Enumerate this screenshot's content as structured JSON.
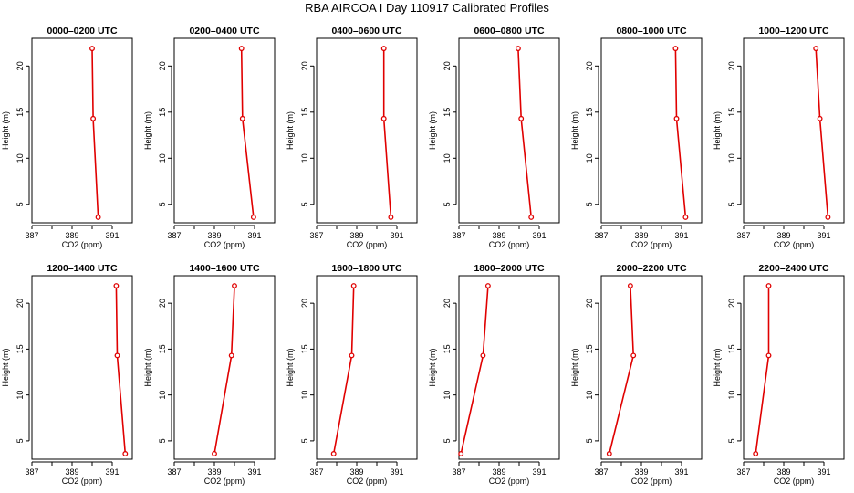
{
  "title": "RBA AIRCOA I  Day 110917  Calibrated Profiles",
  "colors": {
    "series": "#e00000",
    "axis": "#000000"
  },
  "chart_data": [
    {
      "type": "line",
      "title": "0000–0200 UTC",
      "xlabel": "CO2 (ppm)",
      "ylabel": "Height (m)",
      "xlim": [
        387,
        392
      ],
      "ylim": [
        3,
        23
      ],
      "x_ticks": [
        387,
        389,
        391
      ],
      "y_ticks": [
        5,
        10,
        15,
        20
      ],
      "grid": false,
      "x": [
        390.0,
        390.05,
        390.3
      ],
      "y": [
        21.9,
        14.3,
        3.6
      ]
    },
    {
      "type": "line",
      "title": "0200–0400 UTC",
      "xlabel": "CO2 (ppm)",
      "ylabel": "Height (m)",
      "xlim": [
        387,
        392
      ],
      "ylim": [
        3,
        23
      ],
      "x_ticks": [
        387,
        389,
        391
      ],
      "y_ticks": [
        5,
        10,
        15,
        20
      ],
      "grid": false,
      "x": [
        390.35,
        390.4,
        390.95
      ],
      "y": [
        21.9,
        14.3,
        3.6
      ]
    },
    {
      "type": "line",
      "title": "0400–0600 UTC",
      "xlabel": "CO2 (ppm)",
      "ylabel": "Height (m)",
      "xlim": [
        387,
        392
      ],
      "ylim": [
        3,
        23
      ],
      "x_ticks": [
        387,
        389,
        391
      ],
      "y_ticks": [
        5,
        10,
        15,
        20
      ],
      "grid": false,
      "x": [
        390.35,
        390.35,
        390.7
      ],
      "y": [
        21.9,
        14.3,
        3.6
      ]
    },
    {
      "type": "line",
      "title": "0600–0800 UTC",
      "xlabel": "CO2 (ppm)",
      "ylabel": "Height (m)",
      "xlim": [
        387,
        392
      ],
      "ylim": [
        3,
        23
      ],
      "x_ticks": [
        387,
        389,
        391
      ],
      "y_ticks": [
        5,
        10,
        15,
        20
      ],
      "grid": false,
      "x": [
        389.95,
        390.1,
        390.6
      ],
      "y": [
        21.9,
        14.3,
        3.6
      ]
    },
    {
      "type": "line",
      "title": "0800–1000 UTC",
      "xlabel": "CO2 (ppm)",
      "ylabel": "Height (m)",
      "xlim": [
        387,
        392
      ],
      "ylim": [
        3,
        23
      ],
      "x_ticks": [
        387,
        389,
        391
      ],
      "y_ticks": [
        5,
        10,
        15,
        20
      ],
      "grid": false,
      "x": [
        390.7,
        390.75,
        391.2
      ],
      "y": [
        21.9,
        14.3,
        3.6
      ]
    },
    {
      "type": "line",
      "title": "1000–1200 UTC",
      "xlabel": "CO2 (ppm)",
      "ylabel": "Height (m)",
      "xlim": [
        387,
        392
      ],
      "ylim": [
        3,
        23
      ],
      "x_ticks": [
        387,
        389,
        391
      ],
      "y_ticks": [
        5,
        10,
        15,
        20
      ],
      "grid": false,
      "x": [
        390.6,
        390.8,
        391.2
      ],
      "y": [
        21.9,
        14.3,
        3.6
      ]
    },
    {
      "type": "line",
      "title": "1200–1400 UTC",
      "xlabel": "CO2 (ppm)",
      "ylabel": "Height (m)",
      "xlim": [
        387,
        392
      ],
      "ylim": [
        3,
        23
      ],
      "x_ticks": [
        387,
        389,
        391
      ],
      "y_ticks": [
        5,
        10,
        15,
        20
      ],
      "grid": false,
      "x": [
        391.2,
        391.25,
        391.65
      ],
      "y": [
        21.9,
        14.3,
        3.6
      ]
    },
    {
      "type": "line",
      "title": "1400–1600 UTC",
      "xlabel": "CO2 (ppm)",
      "ylabel": "Height (m)",
      "xlim": [
        387,
        392
      ],
      "ylim": [
        3,
        23
      ],
      "x_ticks": [
        387,
        389,
        391
      ],
      "y_ticks": [
        5,
        10,
        15,
        20
      ],
      "grid": false,
      "x": [
        390.0,
        389.85,
        389.0
      ],
      "y": [
        21.9,
        14.3,
        3.6
      ]
    },
    {
      "type": "line",
      "title": "1600–1800 UTC",
      "xlabel": "CO2 (ppm)",
      "ylabel": "Height (m)",
      "xlim": [
        387,
        392
      ],
      "ylim": [
        3,
        23
      ],
      "x_ticks": [
        387,
        389,
        391
      ],
      "y_ticks": [
        5,
        10,
        15,
        20
      ],
      "grid": false,
      "x": [
        388.85,
        388.75,
        387.85
      ],
      "y": [
        21.9,
        14.3,
        3.6
      ]
    },
    {
      "type": "line",
      "title": "1800–2000 UTC",
      "xlabel": "CO2 (ppm)",
      "ylabel": "Height (m)",
      "xlim": [
        387,
        392
      ],
      "ylim": [
        3,
        23
      ],
      "x_ticks": [
        387,
        389,
        391
      ],
      "y_ticks": [
        5,
        10,
        15,
        20
      ],
      "grid": false,
      "x": [
        388.45,
        388.2,
        387.1
      ],
      "y": [
        21.9,
        14.3,
        3.6
      ]
    },
    {
      "type": "line",
      "title": "2000–2200 UTC",
      "xlabel": "CO2 (ppm)",
      "ylabel": "Height (m)",
      "xlim": [
        387,
        392
      ],
      "ylim": [
        3,
        23
      ],
      "x_ticks": [
        387,
        389,
        391
      ],
      "y_ticks": [
        5,
        10,
        15,
        20
      ],
      "grid": false,
      "x": [
        388.45,
        388.6,
        387.4
      ],
      "y": [
        21.9,
        14.3,
        3.6
      ]
    },
    {
      "type": "line",
      "title": "2200–2400 UTC",
      "xlabel": "CO2 (ppm)",
      "ylabel": "Height (m)",
      "xlim": [
        387,
        392
      ],
      "ylim": [
        3,
        23
      ],
      "x_ticks": [
        387,
        389,
        391
      ],
      "y_ticks": [
        5,
        10,
        15,
        20
      ],
      "grid": false,
      "x": [
        388.25,
        388.25,
        387.6
      ],
      "y": [
        21.9,
        14.3,
        3.6
      ]
    }
  ]
}
